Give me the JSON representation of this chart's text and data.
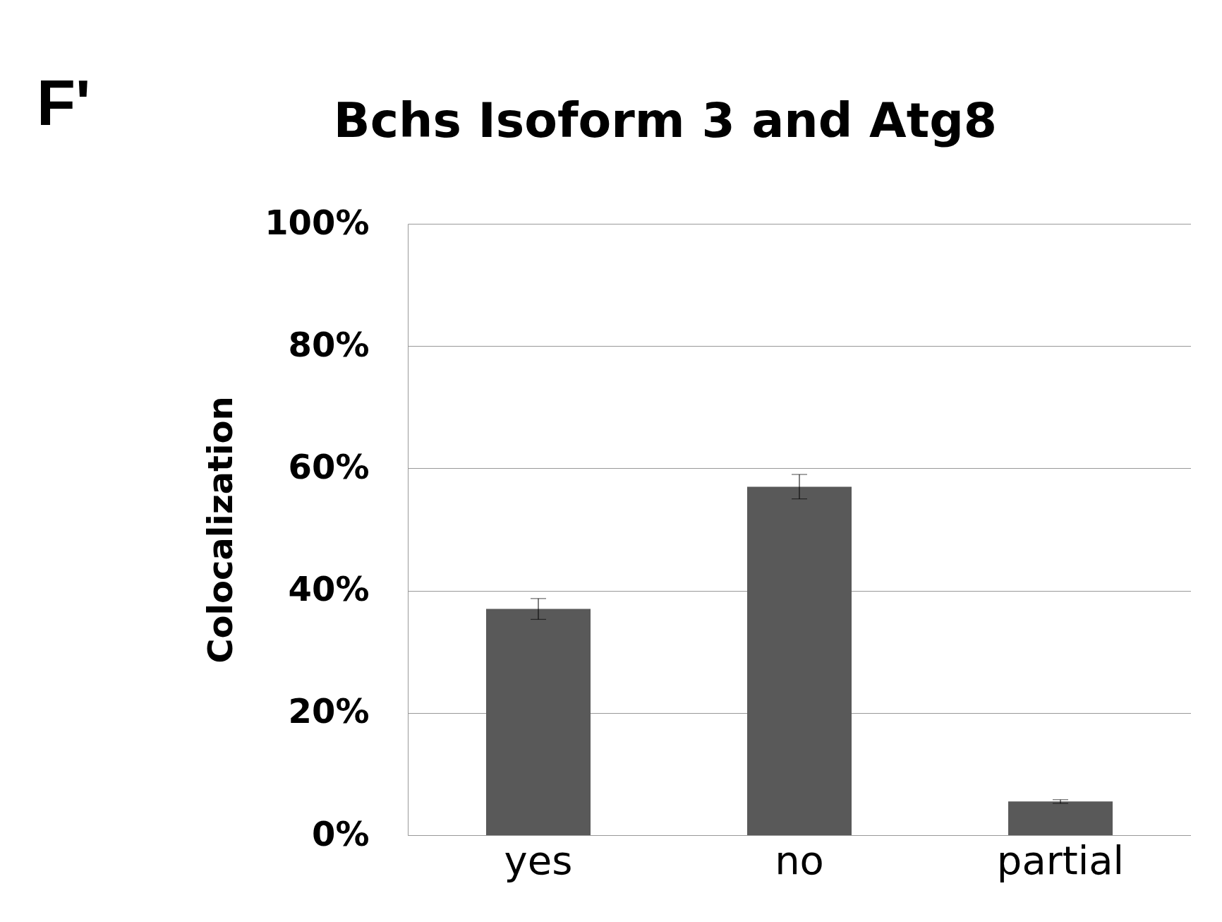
{
  "chart_data": {
    "type": "bar",
    "title": "Bchs Isoform 3 and Atg8",
    "ylabel": "Colocalization",
    "annotations": [
      "F'"
    ],
    "categories": [
      "yes",
      "no",
      "partial"
    ],
    "values": [
      37,
      57,
      5.5
    ],
    "errors": [
      1.7,
      2,
      0.3
    ],
    "color": "#595959",
    "ylim": [
      0,
      100
    ],
    "yticks": [
      {
        "value": 0,
        "label": "0%"
      },
      {
        "value": 20,
        "label": "20%"
      },
      {
        "value": 40,
        "label": "40%"
      },
      {
        "value": 60,
        "label": "60%"
      },
      {
        "value": 80,
        "label": "80%"
      },
      {
        "value": 100,
        "label": "100%"
      }
    ],
    "grid": "y"
  }
}
